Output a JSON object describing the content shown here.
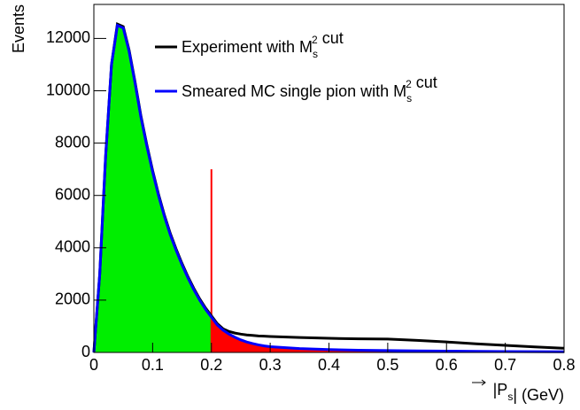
{
  "chart_data": {
    "type": "line",
    "x_label": "|P_{s}| (GeV)",
    "y_label": "Events",
    "x": [
      0,
      0.01,
      0.02,
      0.03,
      0.04,
      0.05,
      0.06,
      0.07,
      0.08,
      0.09,
      0.1,
      0.11,
      0.12,
      0.13,
      0.14,
      0.15,
      0.16,
      0.17,
      0.18,
      0.19,
      0.2,
      0.21,
      0.22,
      0.23,
      0.24,
      0.25,
      0.26,
      0.27,
      0.28,
      0.29,
      0.3,
      0.35,
      0.4,
      0.45,
      0.5,
      0.55,
      0.6,
      0.65,
      0.7,
      0.75,
      0.8
    ],
    "series": [
      {
        "name": "Experiment with M_{s}^{2} cut",
        "color": "#000000",
        "values": [
          0,
          3000,
          7500,
          11000,
          12550,
          12450,
          11550,
          10350,
          9050,
          7950,
          6950,
          6050,
          5250,
          4550,
          3950,
          3400,
          2900,
          2450,
          2050,
          1700,
          1400,
          1100,
          900,
          800,
          740,
          700,
          670,
          650,
          630,
          620,
          610,
          570,
          540,
          520,
          510,
          460,
          400,
          330,
          270,
          210,
          160
        ]
      },
      {
        "name": "Smeared MC single pion with M_{s}^{2} cut",
        "color": "#0000ff",
        "values": [
          0,
          3000,
          7500,
          11000,
          12500,
          12400,
          11500,
          10300,
          9000,
          7900,
          6900,
          6000,
          5200,
          4500,
          3900,
          3350,
          2850,
          2400,
          2000,
          1650,
          1350,
          1050,
          850,
          700,
          580,
          480,
          400,
          340,
          290,
          250,
          220,
          150,
          110,
          85,
          70,
          60,
          50,
          42,
          35,
          30,
          25
        ]
      }
    ],
    "cut": {
      "x": 0.2,
      "ymax": 7000,
      "color": "#ff0000"
    },
    "fill_below_cut": "#00ee00",
    "fill_above_cut": "#ff0000",
    "xlim": [
      0,
      0.8
    ],
    "xticks": [
      0,
      0.1,
      0.2,
      0.3,
      0.4,
      0.5,
      0.6,
      0.7,
      0.8
    ],
    "ylim": [
      0,
      13300
    ],
    "yticks": [
      0,
      2000,
      4000,
      6000,
      8000,
      10000,
      12000
    ]
  }
}
